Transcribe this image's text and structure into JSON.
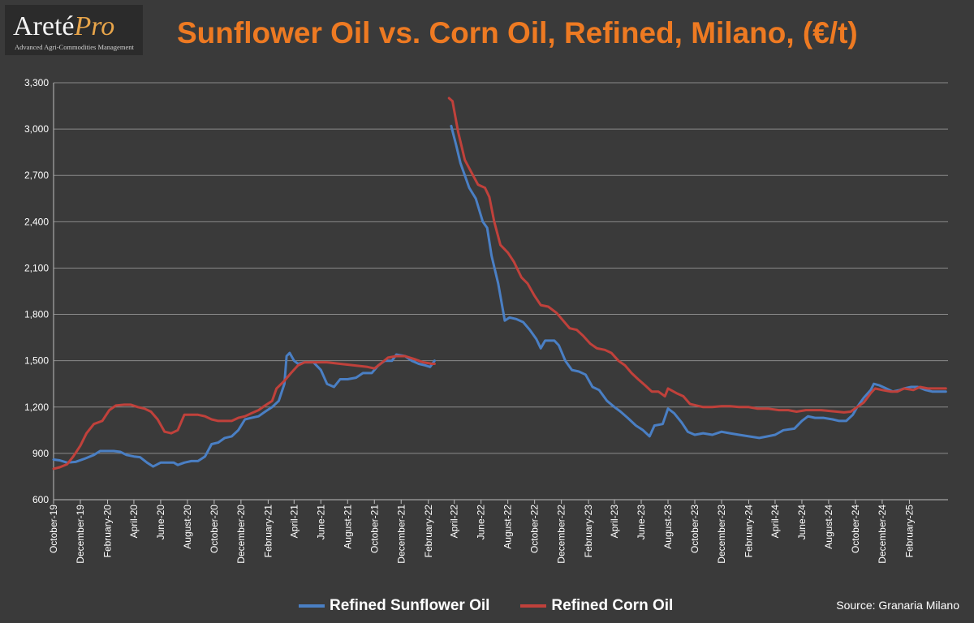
{
  "logo": {
    "main": "Areté",
    "accent": "Pro",
    "tagline": "Advanced Agri-Commodities Management"
  },
  "title": "Sunflower Oil vs. Corn Oil, Refined, Milano, (€/t)",
  "source": "Source: Granaria Milano",
  "colors": {
    "sunflower": "#4a7fc4",
    "corn": "#c0413b",
    "grid": "#8a8a8a",
    "text": "#ffffff",
    "title": "#ee7a22"
  },
  "chart_data": {
    "type": "line",
    "ylim": [
      600,
      3300
    ],
    "yticks": [
      600,
      900,
      1200,
      1500,
      1800,
      2100,
      2400,
      2700,
      3000,
      3300
    ],
    "ytick_labels": [
      "600",
      "900",
      "1,200",
      "1,500",
      "1,800",
      "2,100",
      "2,400",
      "2,700",
      "3,000",
      "3,300"
    ],
    "xlim": [
      "2019-10-01",
      "2025-04-30"
    ],
    "xtick_labels": [
      "October-19",
      "December-19",
      "February-20",
      "April-20",
      "June-20",
      "August-20",
      "October-20",
      "December-20",
      "February-21",
      "April-21",
      "June-21",
      "August-21",
      "October-21",
      "December-21",
      "February-22",
      "April-22",
      "June-22",
      "August-22",
      "October-22",
      "December-22",
      "February-23",
      "April-23",
      "June-23",
      "August-23",
      "October-23",
      "December-23",
      "February-24",
      "April-24",
      "June-24",
      "August-24",
      "October-24",
      "December-24",
      "February-25"
    ],
    "grid": true,
    "legend_position": "bottom",
    "series": [
      {
        "name": "Refined Sunflower Oil",
        "points": [
          [
            "2019-10-01",
            860
          ],
          [
            "2019-10-15",
            855
          ],
          [
            "2019-11-01",
            840
          ],
          [
            "2019-11-20",
            845
          ],
          [
            "2019-12-10",
            865
          ],
          [
            "2020-01-01",
            890
          ],
          [
            "2020-01-15",
            915
          ],
          [
            "2020-02-15",
            915
          ],
          [
            "2020-03-01",
            910
          ],
          [
            "2020-03-15",
            890
          ],
          [
            "2020-04-01",
            880
          ],
          [
            "2020-04-15",
            875
          ],
          [
            "2020-05-01",
            840
          ],
          [
            "2020-05-15",
            815
          ],
          [
            "2020-06-01",
            840
          ],
          [
            "2020-06-15",
            840
          ],
          [
            "2020-07-01",
            840
          ],
          [
            "2020-07-10",
            825
          ],
          [
            "2020-07-25",
            840
          ],
          [
            "2020-08-10",
            850
          ],
          [
            "2020-08-25",
            850
          ],
          [
            "2020-09-10",
            880
          ],
          [
            "2020-09-25",
            960
          ],
          [
            "2020-10-10",
            970
          ],
          [
            "2020-10-25",
            1000
          ],
          [
            "2020-11-10",
            1010
          ],
          [
            "2020-11-25",
            1050
          ],
          [
            "2020-12-10",
            1120
          ],
          [
            "2020-12-25",
            1130
          ],
          [
            "2021-01-10",
            1140
          ],
          [
            "2021-01-25",
            1170
          ],
          [
            "2021-02-10",
            1200
          ],
          [
            "2021-02-25",
            1240
          ],
          [
            "2021-03-10",
            1350
          ],
          [
            "2021-03-15",
            1530
          ],
          [
            "2021-03-22",
            1550
          ],
          [
            "2021-04-01",
            1500
          ],
          [
            "2021-04-10",
            1480
          ],
          [
            "2021-04-25",
            1490
          ],
          [
            "2021-05-15",
            1490
          ],
          [
            "2021-06-01",
            1440
          ],
          [
            "2021-06-15",
            1350
          ],
          [
            "2021-07-01",
            1330
          ],
          [
            "2021-07-15",
            1380
          ],
          [
            "2021-08-01",
            1380
          ],
          [
            "2021-08-20",
            1390
          ],
          [
            "2021-09-05",
            1420
          ],
          [
            "2021-09-25",
            1420
          ],
          [
            "2021-10-10",
            1470
          ],
          [
            "2021-10-25",
            1500
          ],
          [
            "2021-11-10",
            1500
          ],
          [
            "2021-11-20",
            1540
          ],
          [
            "2021-12-10",
            1530
          ],
          [
            "2021-12-25",
            1500
          ],
          [
            "2022-01-10",
            1480
          ],
          [
            "2022-01-25",
            1470
          ],
          [
            "2022-02-05",
            1460
          ],
          [
            "2022-02-15",
            1500
          ],
          null,
          [
            "2022-03-25",
            3020
          ],
          [
            "2022-04-05",
            2900
          ],
          [
            "2022-04-15",
            2780
          ],
          [
            "2022-04-25",
            2700
          ],
          [
            "2022-05-05",
            2620
          ],
          [
            "2022-05-20",
            2550
          ],
          [
            "2022-06-05",
            2400
          ],
          [
            "2022-06-15",
            2360
          ],
          [
            "2022-06-25",
            2180
          ],
          [
            "2022-07-10",
            2000
          ],
          [
            "2022-07-25",
            1760
          ],
          [
            "2022-08-05",
            1780
          ],
          [
            "2022-08-20",
            1770
          ],
          [
            "2022-09-05",
            1750
          ],
          [
            "2022-09-20",
            1700
          ],
          [
            "2022-10-05",
            1640
          ],
          [
            "2022-10-15",
            1580
          ],
          [
            "2022-10-25",
            1630
          ],
          [
            "2022-11-15",
            1630
          ],
          [
            "2022-11-25",
            1600
          ],
          [
            "2022-12-10",
            1500
          ],
          [
            "2022-12-25",
            1440
          ],
          [
            "2023-01-10",
            1430
          ],
          [
            "2023-01-25",
            1410
          ],
          [
            "2023-02-10",
            1330
          ],
          [
            "2023-02-25",
            1310
          ],
          [
            "2023-03-15",
            1240
          ],
          [
            "2023-04-01",
            1200
          ],
          [
            "2023-04-15",
            1170
          ],
          [
            "2023-05-01",
            1130
          ],
          [
            "2023-05-20",
            1080
          ],
          [
            "2023-06-05",
            1050
          ],
          [
            "2023-06-20",
            1010
          ],
          [
            "2023-07-01",
            1080
          ],
          [
            "2023-07-20",
            1090
          ],
          [
            "2023-08-01",
            1190
          ],
          [
            "2023-08-15",
            1160
          ],
          [
            "2023-09-01",
            1100
          ],
          [
            "2023-09-15",
            1040
          ],
          [
            "2023-10-01",
            1020
          ],
          [
            "2023-10-20",
            1030
          ],
          [
            "2023-11-10",
            1020
          ],
          [
            "2023-12-01",
            1040
          ],
          [
            "2023-12-20",
            1030
          ],
          [
            "2024-01-10",
            1020
          ],
          [
            "2024-02-01",
            1010
          ],
          [
            "2024-02-25",
            1000
          ],
          [
            "2024-03-15",
            1010
          ],
          [
            "2024-04-01",
            1020
          ],
          [
            "2024-04-20",
            1050
          ],
          [
            "2024-05-15",
            1060
          ],
          [
            "2024-06-01",
            1110
          ],
          [
            "2024-06-15",
            1140
          ],
          [
            "2024-07-01",
            1130
          ],
          [
            "2024-07-20",
            1130
          ],
          [
            "2024-08-10",
            1120
          ],
          [
            "2024-08-25",
            1110
          ],
          [
            "2024-09-10",
            1110
          ],
          [
            "2024-09-25",
            1150
          ],
          [
            "2024-10-05",
            1200
          ],
          [
            "2024-10-20",
            1260
          ],
          [
            "2024-11-05",
            1310
          ],
          [
            "2024-11-12",
            1350
          ],
          [
            "2024-11-25",
            1340
          ],
          [
            "2024-12-10",
            1320
          ],
          [
            "2024-12-25",
            1300
          ],
          [
            "2025-01-10",
            1310
          ],
          [
            "2025-01-20",
            1320
          ],
          [
            "2025-02-05",
            1330
          ],
          [
            "2025-02-20",
            1330
          ],
          [
            "2025-03-10",
            1310
          ],
          [
            "2025-03-25",
            1300
          ],
          [
            "2025-04-25",
            1300
          ]
        ]
      },
      {
        "name": "Refined Corn Oil",
        "points": [
          [
            "2019-10-01",
            800
          ],
          [
            "2019-10-15",
            810
          ],
          [
            "2019-11-01",
            830
          ],
          [
            "2019-11-15",
            880
          ],
          [
            "2019-12-01",
            950
          ],
          [
            "2019-12-15",
            1030
          ],
          [
            "2020-01-01",
            1090
          ],
          [
            "2020-01-20",
            1110
          ],
          [
            "2020-02-05",
            1180
          ],
          [
            "2020-02-20",
            1210
          ],
          [
            "2020-03-10",
            1215
          ],
          [
            "2020-03-25",
            1215
          ],
          [
            "2020-04-10",
            1200
          ],
          [
            "2020-04-25",
            1190
          ],
          [
            "2020-05-10",
            1170
          ],
          [
            "2020-05-25",
            1120
          ],
          [
            "2020-06-10",
            1040
          ],
          [
            "2020-06-25",
            1030
          ],
          [
            "2020-07-10",
            1050
          ],
          [
            "2020-07-25",
            1150
          ],
          [
            "2020-08-10",
            1150
          ],
          [
            "2020-08-25",
            1150
          ],
          [
            "2020-09-10",
            1140
          ],
          [
            "2020-09-25",
            1120
          ],
          [
            "2020-10-10",
            1110
          ],
          [
            "2020-10-25",
            1110
          ],
          [
            "2020-11-10",
            1110
          ],
          [
            "2020-11-25",
            1130
          ],
          [
            "2020-12-10",
            1140
          ],
          [
            "2020-12-25",
            1160
          ],
          [
            "2021-01-10",
            1180
          ],
          [
            "2021-01-25",
            1210
          ],
          [
            "2021-02-10",
            1240
          ],
          [
            "2021-02-20",
            1320
          ],
          [
            "2021-03-10",
            1370
          ],
          [
            "2021-03-25",
            1420
          ],
          [
            "2021-04-10",
            1470
          ],
          [
            "2021-04-25",
            1490
          ],
          [
            "2021-05-15",
            1490
          ],
          [
            "2021-06-15",
            1490
          ],
          [
            "2021-07-15",
            1480
          ],
          [
            "2021-08-15",
            1470
          ],
          [
            "2021-09-15",
            1460
          ],
          [
            "2021-10-01",
            1450
          ],
          [
            "2021-10-15",
            1480
          ],
          [
            "2021-11-01",
            1520
          ],
          [
            "2021-11-20",
            1530
          ],
          [
            "2021-12-10",
            1530
          ],
          [
            "2022-01-01",
            1510
          ],
          [
            "2022-01-20",
            1490
          ],
          [
            "2022-02-10",
            1480
          ],
          [
            "2022-02-15",
            1480
          ],
          null,
          [
            "2022-03-20",
            3200
          ],
          [
            "2022-03-28",
            3180
          ],
          [
            "2022-04-10",
            2980
          ],
          [
            "2022-04-25",
            2800
          ],
          [
            "2022-05-10",
            2720
          ],
          [
            "2022-05-25",
            2640
          ],
          [
            "2022-06-10",
            2620
          ],
          [
            "2022-06-20",
            2560
          ],
          [
            "2022-07-01",
            2400
          ],
          [
            "2022-07-15",
            2250
          ],
          [
            "2022-08-01",
            2200
          ],
          [
            "2022-08-15",
            2140
          ],
          [
            "2022-09-01",
            2040
          ],
          [
            "2022-09-15",
            2000
          ],
          [
            "2022-10-01",
            1920
          ],
          [
            "2022-10-15",
            1860
          ],
          [
            "2022-11-01",
            1850
          ],
          [
            "2022-11-20",
            1810
          ],
          [
            "2022-12-05",
            1760
          ],
          [
            "2022-12-20",
            1710
          ],
          [
            "2023-01-05",
            1700
          ],
          [
            "2023-01-20",
            1660
          ],
          [
            "2023-02-05",
            1610
          ],
          [
            "2023-02-20",
            1580
          ],
          [
            "2023-03-10",
            1570
          ],
          [
            "2023-03-25",
            1550
          ],
          [
            "2023-04-10",
            1500
          ],
          [
            "2023-04-25",
            1470
          ],
          [
            "2023-05-10",
            1420
          ],
          [
            "2023-05-25",
            1380
          ],
          [
            "2023-06-10",
            1340
          ],
          [
            "2023-06-25",
            1300
          ],
          [
            "2023-07-10",
            1300
          ],
          [
            "2023-07-25",
            1270
          ],
          [
            "2023-08-01",
            1320
          ],
          [
            "2023-08-20",
            1290
          ],
          [
            "2023-09-05",
            1270
          ],
          [
            "2023-09-20",
            1220
          ],
          [
            "2023-10-05",
            1210
          ],
          [
            "2023-10-20",
            1200
          ],
          [
            "2023-11-10",
            1200
          ],
          [
            "2023-12-01",
            1205
          ],
          [
            "2023-12-20",
            1205
          ],
          [
            "2024-01-10",
            1200
          ],
          [
            "2024-02-01",
            1200
          ],
          [
            "2024-02-20",
            1190
          ],
          [
            "2024-03-15",
            1190
          ],
          [
            "2024-04-10",
            1180
          ],
          [
            "2024-05-01",
            1180
          ],
          [
            "2024-05-20",
            1170
          ],
          [
            "2024-06-10",
            1180
          ],
          [
            "2024-06-25",
            1180
          ],
          [
            "2024-07-15",
            1180
          ],
          [
            "2024-08-01",
            1175
          ],
          [
            "2024-08-20",
            1170
          ],
          [
            "2024-09-05",
            1165
          ],
          [
            "2024-09-20",
            1170
          ],
          [
            "2024-10-05",
            1200
          ],
          [
            "2024-10-20",
            1230
          ],
          [
            "2024-11-05",
            1290
          ],
          [
            "2024-11-15",
            1320
          ],
          [
            "2024-12-01",
            1310
          ],
          [
            "2024-12-20",
            1300
          ],
          [
            "2025-01-05",
            1300
          ],
          [
            "2025-01-20",
            1320
          ],
          [
            "2025-02-10",
            1310
          ],
          [
            "2025-02-25",
            1330
          ],
          [
            "2025-03-15",
            1320
          ],
          [
            "2025-04-25",
            1320
          ]
        ]
      }
    ]
  }
}
